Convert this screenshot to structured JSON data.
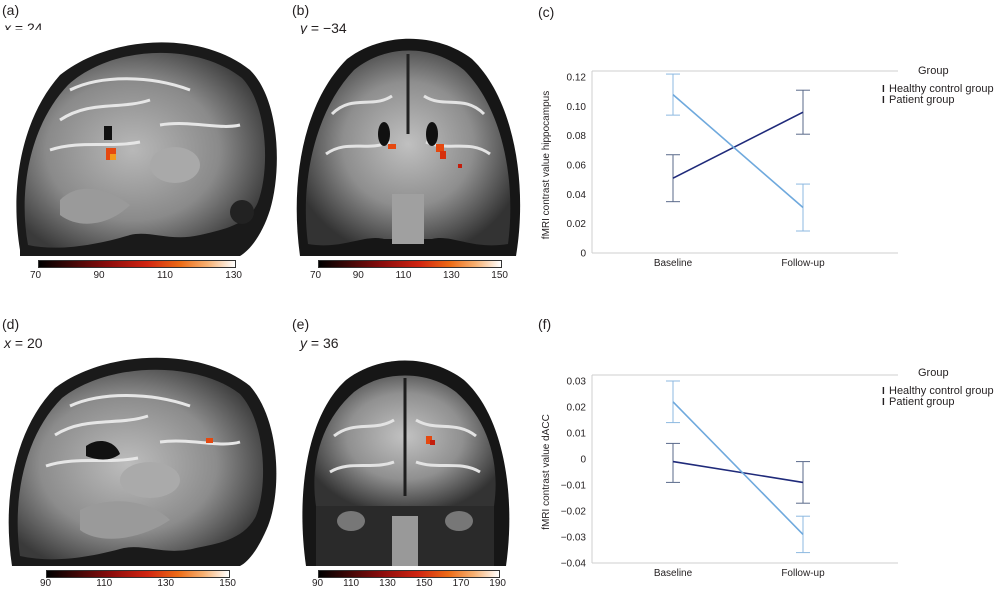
{
  "panels": {
    "a": {
      "label": "(a)",
      "coord_var": "x",
      "coord_text": " = 24",
      "cbar_ticks": [
        "70",
        "90",
        "110",
        "130"
      ]
    },
    "b": {
      "label": "(b)",
      "coord_var": "y",
      "coord_text": " = −34",
      "cbar_ticks": [
        "70",
        "90",
        "110",
        "130",
        "150"
      ]
    },
    "c": {
      "label": "(c)"
    },
    "d": {
      "label": "(d)",
      "coord_var": "x",
      "coord_text": " = 20",
      "cbar_ticks": [
        "90",
        "110",
        "130",
        "150"
      ]
    },
    "e": {
      "label": "(e)",
      "coord_var": "y",
      "coord_text": " = 36",
      "cbar_ticks": [
        "90",
        "110",
        "130",
        "150",
        "170",
        "190"
      ]
    },
    "f": {
      "label": "(f)"
    }
  },
  "colors": {
    "healthy": "#1f2a7a",
    "patient": "#6fa9dd",
    "healthy_err": "#5a6a8a",
    "patient_err": "#8db9e0"
  },
  "chart_data": [
    {
      "type": "line",
      "ylabel": "fMRI contrast value hippocampus",
      "xlabel": "",
      "categories": [
        "Baseline",
        "Follow-up"
      ],
      "ylim": [
        0,
        0.12
      ],
      "yticks": [
        "0",
        "0.02",
        "0.04",
        "0.06",
        "0.08",
        "0.10",
        "0.12"
      ],
      "ytick_values": [
        0,
        0.02,
        0.04,
        0.06,
        0.08,
        0.1,
        0.12
      ],
      "grid": false,
      "legend_title": "Group",
      "legend_position": "right",
      "series": [
        {
          "name": "Healthy control group",
          "values": [
            0.051,
            0.096
          ],
          "err_low": [
            0.035,
            0.081
          ],
          "err_high": [
            0.067,
            0.111
          ]
        },
        {
          "name": "Patient group",
          "values": [
            0.108,
            0.031
          ],
          "err_low": [
            0.094,
            0.015
          ],
          "err_high": [
            0.122,
            0.047
          ]
        }
      ]
    },
    {
      "type": "line",
      "ylabel": "fMRI contrast value dACC",
      "xlabel": "",
      "categories": [
        "Baseline",
        "Follow-up"
      ],
      "ylim": [
        -0.04,
        0.03
      ],
      "yticks": [
        "0.03",
        "0.02",
        "0.01",
        "0",
        "−0.01",
        "−0.02",
        "−0.03",
        "−0.04"
      ],
      "ytick_values": [
        0.03,
        0.02,
        0.01,
        0,
        -0.01,
        -0.02,
        -0.03,
        -0.04
      ],
      "grid": false,
      "legend_title": "Group",
      "legend_position": "right",
      "series": [
        {
          "name": "Healthy control group",
          "values": [
            -0.001,
            -0.009
          ],
          "err_low": [
            -0.009,
            -0.017
          ],
          "err_high": [
            0.006,
            -0.001
          ]
        },
        {
          "name": "Patient group",
          "values": [
            0.022,
            -0.029
          ],
          "err_low": [
            0.014,
            -0.036
          ],
          "err_high": [
            0.03,
            -0.022
          ]
        }
      ]
    }
  ]
}
